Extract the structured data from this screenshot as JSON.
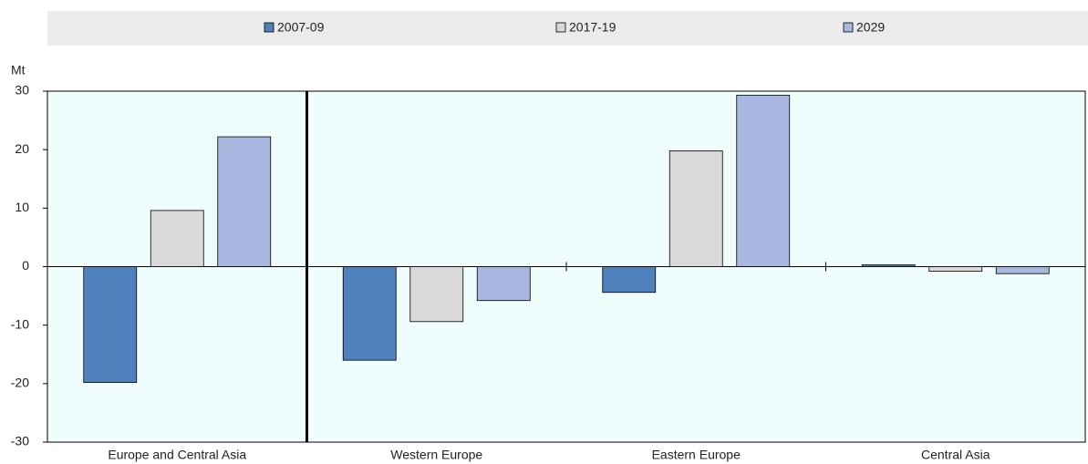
{
  "chart_data": {
    "type": "bar",
    "y_label": "Mt",
    "categories": [
      "Europe and Central Asia",
      "Western Europe",
      "Eastern Europe",
      "Central Asia"
    ],
    "series": [
      {
        "name": "2007-09",
        "color": "#4f81bd",
        "values": [
          -19.8,
          -16,
          -4.4,
          0.3
        ]
      },
      {
        "name": "2017-19",
        "color": "#d9d9d9",
        "values": [
          9.6,
          -9.4,
          19.8,
          -0.8
        ]
      },
      {
        "name": "2029",
        "color": "#a7b7e0",
        "values": [
          22.2,
          -5.8,
          29.3,
          -1.2
        ]
      }
    ],
    "ylim": [
      -30,
      30
    ],
    "yticks": [
      -30,
      -20,
      -10,
      0,
      10,
      20,
      30
    ],
    "legend": "top"
  }
}
